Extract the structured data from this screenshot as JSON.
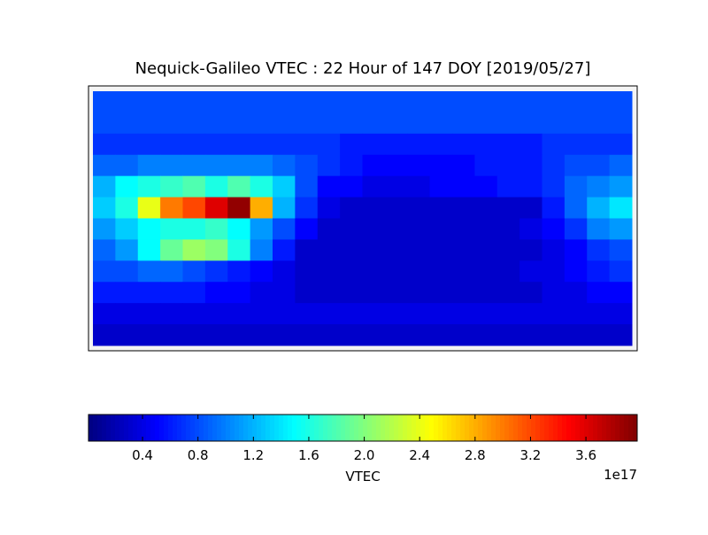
{
  "chart_data": {
    "type": "heatmap",
    "title": "Nequick-Galileo VTEC : 22 Hour of 147 DOY [2019/05/27]",
    "colorbar_label": "VTEC",
    "colorbar_offset": "1e17",
    "colormap": "jet",
    "clim": [
      0.01,
      3.97
    ],
    "cticks": [
      0.4,
      0.8,
      1.2,
      1.6,
      {
        "value": 2,
        "label": "2.0"
      },
      2.4,
      2.8,
      3.2,
      3.6
    ],
    "values": [
      [
        0.8,
        0.8,
        0.8,
        0.8,
        0.8,
        0.8,
        0.8,
        0.8,
        0.8,
        0.8,
        0.8,
        0.8,
        0.8,
        0.8,
        0.8,
        0.8,
        0.8,
        0.8,
        0.8,
        0.8,
        0.8,
        0.8,
        0.8,
        0.8
      ],
      [
        0.8,
        0.8,
        0.8,
        0.8,
        0.8,
        0.8,
        0.8,
        0.8,
        0.8,
        0.8,
        0.8,
        0.8,
        0.8,
        0.8,
        0.8,
        0.8,
        0.8,
        0.8,
        0.8,
        0.8,
        0.8,
        0.8,
        0.8,
        0.8
      ],
      [
        0.7,
        0.7,
        0.7,
        0.7,
        0.7,
        0.7,
        0.7,
        0.7,
        0.7,
        0.7,
        0.7,
        0.6,
        0.6,
        0.6,
        0.6,
        0.6,
        0.6,
        0.6,
        0.6,
        0.6,
        0.7,
        0.7,
        0.7,
        0.7
      ],
      [
        0.9,
        0.9,
        1.0,
        1.0,
        1.0,
        1.0,
        1.0,
        1.0,
        0.9,
        0.8,
        0.7,
        0.6,
        0.5,
        0.5,
        0.5,
        0.5,
        0.5,
        0.6,
        0.6,
        0.6,
        0.7,
        0.8,
        0.8,
        0.9
      ],
      [
        1.2,
        1.5,
        1.6,
        1.7,
        1.8,
        1.6,
        1.8,
        1.6,
        1.3,
        0.8,
        0.5,
        0.5,
        0.4,
        0.4,
        0.4,
        0.5,
        0.5,
        0.5,
        0.6,
        0.6,
        0.7,
        0.9,
        1.0,
        1.1
      ],
      [
        1.3,
        1.6,
        2.4,
        3.0,
        3.2,
        3.6,
        3.9,
        2.8,
        1.2,
        0.7,
        0.4,
        0.3,
        0.3,
        0.3,
        0.3,
        0.3,
        0.3,
        0.3,
        0.3,
        0.3,
        0.6,
        0.9,
        1.2,
        1.4
      ],
      [
        1.1,
        1.3,
        1.5,
        1.6,
        1.6,
        1.7,
        1.5,
        1.1,
        0.8,
        0.5,
        0.3,
        0.3,
        0.3,
        0.3,
        0.3,
        0.3,
        0.3,
        0.3,
        0.3,
        0.4,
        0.5,
        0.7,
        1.0,
        1.1
      ],
      [
        0.9,
        1.1,
        1.5,
        1.9,
        2.1,
        2.0,
        1.6,
        1.0,
        0.6,
        0.3,
        0.3,
        0.3,
        0.3,
        0.3,
        0.3,
        0.3,
        0.3,
        0.3,
        0.3,
        0.3,
        0.4,
        0.5,
        0.7,
        0.8
      ],
      [
        0.8,
        0.8,
        0.9,
        0.9,
        0.8,
        0.7,
        0.6,
        0.5,
        0.4,
        0.3,
        0.3,
        0.3,
        0.3,
        0.3,
        0.3,
        0.3,
        0.3,
        0.3,
        0.3,
        0.4,
        0.4,
        0.5,
        0.6,
        0.7
      ],
      [
        0.6,
        0.6,
        0.6,
        0.6,
        0.6,
        0.5,
        0.5,
        0.4,
        0.4,
        0.3,
        0.3,
        0.3,
        0.3,
        0.3,
        0.3,
        0.3,
        0.3,
        0.3,
        0.3,
        0.3,
        0.4,
        0.4,
        0.5,
        0.5
      ],
      [
        0.4,
        0.4,
        0.4,
        0.4,
        0.4,
        0.4,
        0.4,
        0.4,
        0.4,
        0.4,
        0.4,
        0.4,
        0.4,
        0.4,
        0.4,
        0.4,
        0.4,
        0.4,
        0.4,
        0.4,
        0.4,
        0.4,
        0.4,
        0.4
      ],
      [
        0.3,
        0.3,
        0.3,
        0.3,
        0.3,
        0.3,
        0.3,
        0.3,
        0.3,
        0.3,
        0.3,
        0.3,
        0.3,
        0.3,
        0.3,
        0.3,
        0.3,
        0.3,
        0.3,
        0.3,
        0.3,
        0.3,
        0.3,
        0.3
      ]
    ]
  }
}
